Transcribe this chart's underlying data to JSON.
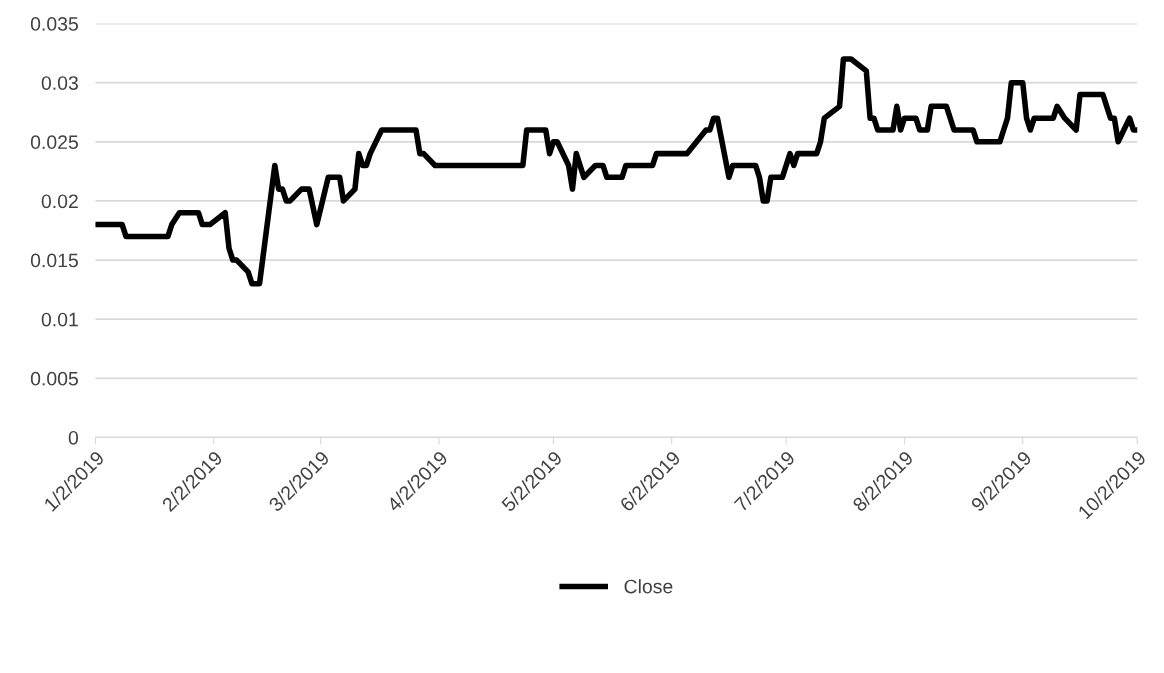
{
  "chart_data": {
    "type": "line",
    "x": [
      "2019-01-02",
      "2019-01-09",
      "2019-01-10",
      "2019-01-21",
      "2019-01-22",
      "2019-01-24",
      "2019-01-29",
      "2019-01-30",
      "2019-02-01",
      "2019-02-05",
      "2019-02-06",
      "2019-02-07",
      "2019-02-08",
      "2019-02-11",
      "2019-02-12",
      "2019-02-14",
      "2019-02-18",
      "2019-02-19",
      "2019-02-20",
      "2019-02-21",
      "2019-02-22",
      "2019-02-25",
      "2019-02-27",
      "2019-03-01",
      "2019-03-04",
      "2019-03-07",
      "2019-03-08",
      "2019-03-11",
      "2019-03-12",
      "2019-03-13",
      "2019-03-14",
      "2019-03-15",
      "2019-03-18",
      "2019-03-27",
      "2019-03-28",
      "2019-03-29",
      "2019-04-01",
      "2019-04-24",
      "2019-04-25",
      "2019-04-30",
      "2019-05-01",
      "2019-05-02",
      "2019-05-03",
      "2019-05-06",
      "2019-05-07",
      "2019-05-08",
      "2019-05-10",
      "2019-05-13",
      "2019-05-15",
      "2019-05-16",
      "2019-05-20",
      "2019-05-21",
      "2019-05-28",
      "2019-05-29",
      "2019-06-06",
      "2019-06-11",
      "2019-06-12",
      "2019-06-13",
      "2019-06-14",
      "2019-06-17",
      "2019-06-18",
      "2019-06-24",
      "2019-06-25",
      "2019-06-26",
      "2019-06-27",
      "2019-06-28",
      "2019-07-01",
      "2019-07-03",
      "2019-07-04",
      "2019-07-05",
      "2019-07-10",
      "2019-07-11",
      "2019-07-12",
      "2019-07-16",
      "2019-07-17",
      "2019-07-19",
      "2019-07-23",
      "2019-07-24",
      "2019-07-25",
      "2019-07-26",
      "2019-07-30",
      "2019-07-31",
      "2019-08-01",
      "2019-08-02",
      "2019-08-05",
      "2019-08-06",
      "2019-08-08",
      "2019-08-09",
      "2019-08-13",
      "2019-08-15",
      "2019-08-20",
      "2019-08-21",
      "2019-08-27",
      "2019-08-28",
      "2019-08-29",
      "2019-08-30",
      "2019-09-02",
      "2019-09-03",
      "2019-09-04",
      "2019-09-05",
      "2019-09-10",
      "2019-09-11",
      "2019-09-13",
      "2019-09-16",
      "2019-09-17",
      "2019-09-23",
      "2019-09-24",
      "2019-09-25",
      "2019-09-26",
      "2019-09-27",
      "2019-09-30",
      "2019-10-01",
      "2019-10-02"
    ],
    "series": [
      {
        "name": "Close",
        "color": "#000000",
        "values": [
          0.018,
          0.018,
          0.017,
          0.017,
          0.018,
          0.019,
          0.019,
          0.018,
          0.018,
          0.019,
          0.016,
          0.015,
          0.015,
          0.014,
          0.013,
          0.013,
          0.023,
          0.021,
          0.021,
          0.02,
          0.02,
          0.021,
          0.021,
          0.018,
          0.022,
          0.022,
          0.02,
          0.021,
          0.024,
          0.023,
          0.023,
          0.024,
          0.026,
          0.026,
          0.024,
          0.024,
          0.023,
          0.023,
          0.026,
          0.026,
          0.024,
          0.025,
          0.025,
          0.023,
          0.021,
          0.024,
          0.022,
          0.023,
          0.023,
          0.022,
          0.022,
          0.023,
          0.023,
          0.024,
          0.024,
          0.026,
          0.026,
          0.027,
          0.027,
          0.022,
          0.023,
          0.023,
          0.022,
          0.02,
          0.02,
          0.022,
          0.022,
          0.024,
          0.023,
          0.024,
          0.024,
          0.025,
          0.027,
          0.028,
          0.032,
          0.032,
          0.031,
          0.027,
          0.027,
          0.026,
          0.026,
          0.028,
          0.026,
          0.027,
          0.027,
          0.026,
          0.026,
          0.028,
          0.028,
          0.026,
          0.026,
          0.025,
          0.025,
          0.026,
          0.027,
          0.03,
          0.03,
          0.027,
          0.026,
          0.027,
          0.027,
          0.028,
          0.027,
          0.026,
          0.029,
          0.029,
          0.028,
          0.027,
          0.027,
          0.025,
          0.027,
          0.026,
          0.026
        ]
      }
    ],
    "xlim": [
      "2019-01-02",
      "2019-10-02"
    ],
    "xticks": [
      {
        "value": "2019-01-02",
        "label": "1/2/2019"
      },
      {
        "value": "2019-02-02",
        "label": "2/2/2019"
      },
      {
        "value": "2019-03-02",
        "label": "3/2/2019"
      },
      {
        "value": "2019-04-02",
        "label": "4/2/2019"
      },
      {
        "value": "2019-05-02",
        "label": "5/2/2019"
      },
      {
        "value": "2019-06-02",
        "label": "6/2/2019"
      },
      {
        "value": "2019-07-02",
        "label": "7/2/2019"
      },
      {
        "value": "2019-08-02",
        "label": "8/2/2019"
      },
      {
        "value": "2019-09-02",
        "label": "9/2/2019"
      },
      {
        "value": "2019-10-02",
        "label": "10/2/2019"
      }
    ],
    "ylim": [
      0,
      0.035
    ],
    "yticks": [
      {
        "value": 0,
        "label": "0"
      },
      0.005,
      0.01,
      0.015,
      0.02,
      0.025,
      0.03,
      0.035
    ],
    "grid": "y",
    "legend": "bottom",
    "marker": "none",
    "line_style": "solid"
  }
}
